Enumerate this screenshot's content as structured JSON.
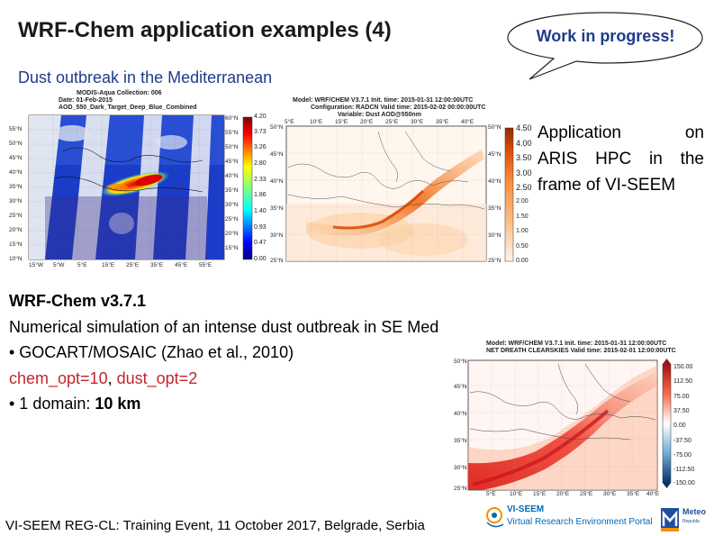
{
  "slide": {
    "title": "WRF-Chem application examples (4)",
    "subtitle": "Dust outbreak in the Mediterranean",
    "bubble": "Work in progress!",
    "application_lines": [
      "Application on",
      "ARIS HPC in the",
      "frame of VI-SEEM"
    ],
    "body": {
      "line1": "WRF-Chem v3.7.1",
      "line2": "Numerical simulation of an intense dust outbreak in SE Med",
      "bullet1": "• GOCART/MOSAIC (Zhao et al., 2010)",
      "opt1": "chem_opt=10",
      "sep": ",",
      "opt2": "dust_opt=2",
      "bullet2_prefix": "• 1 domain: ",
      "bullet2_value": "10 km"
    },
    "footer": "VI-SEEM REG-CL: Training Event, 11 October 2017, Belgrade, Serbia"
  },
  "modis_map": {
    "header": [
      "MODIS-Aqua   Collection: 006",
      "Date: 01-Feb-2015",
      "AOD_550_Dark_Target_Deep_Blue_Combined"
    ],
    "lon_ticks": [
      "15°W",
      "5°W",
      "5°E",
      "15°E",
      "25°E",
      "35°E",
      "45°E",
      "55°E"
    ],
    "lat_ticks": [
      "60°N",
      "55°N",
      "50°N",
      "45°N",
      "40°N",
      "35°N",
      "30°N",
      "25°N",
      "20°N",
      "15°N",
      "10°N"
    ],
    "colorbar": [
      "4.20",
      "3.73",
      "3.26",
      "2.80",
      "2.33",
      "1.86",
      "1.40",
      "0.93",
      "0.47",
      "0.00"
    ]
  },
  "wrf_map": {
    "header": [
      "Model: WRF/CHEM V3.7.1   Init. time: 2015-01-31 12:00:00UTC",
      "Configuration: RADCN   Valid time: 2015-02-02 00:00:00UTC",
      "Variable: Dust AOD@550nm"
    ],
    "lon_ticks": [
      "5°E",
      "10°E",
      "15°E",
      "20°E",
      "25°E",
      "30°E",
      "35°E",
      "40°E"
    ],
    "lat_ticks": [
      "50°N",
      "45°N",
      "40°N",
      "35°N",
      "30°N",
      "25°N"
    ],
    "colorbar": [
      "4.50",
      "4.00",
      "3.50",
      "3.00",
      "2.50",
      "2.00",
      "1.50",
      "1.00",
      "0.50",
      "0.00"
    ]
  },
  "flux_map": {
    "header": [
      "Model: WRF/CHEM V3.7.1   Init. time: 2015-01-31 12:00:00UTC",
      "NET DREATH CLEARSKIES   Valid time: 2015-02-01 12:00:00UTC"
    ],
    "lon_ticks": [
      "5°E",
      "10°E",
      "15°E",
      "20°E",
      "25°E",
      "30°E",
      "35°E",
      "40°E"
    ],
    "lat_ticks": [
      "50°N",
      "45°N",
      "40°N",
      "35°N",
      "30°N",
      "25°N"
    ],
    "colorbar": [
      "150.00",
      "112.50",
      "75.00",
      "37.50",
      "0.00",
      "-37.50",
      "-75.00",
      "-112.50",
      "-150.00"
    ]
  },
  "logos": {
    "vi_seem_name": "VI-SEEM",
    "vi_seem_tagline": "Virtual Research Environment Portal",
    "metno_name": "Meteo",
    "metno_sub": "Republic"
  },
  "colors": {
    "title": "#1a1a1a",
    "subtitle": "#1f3b8c",
    "highlight_red": "#c0262d",
    "bubble_text": "#1f3b8c"
  }
}
